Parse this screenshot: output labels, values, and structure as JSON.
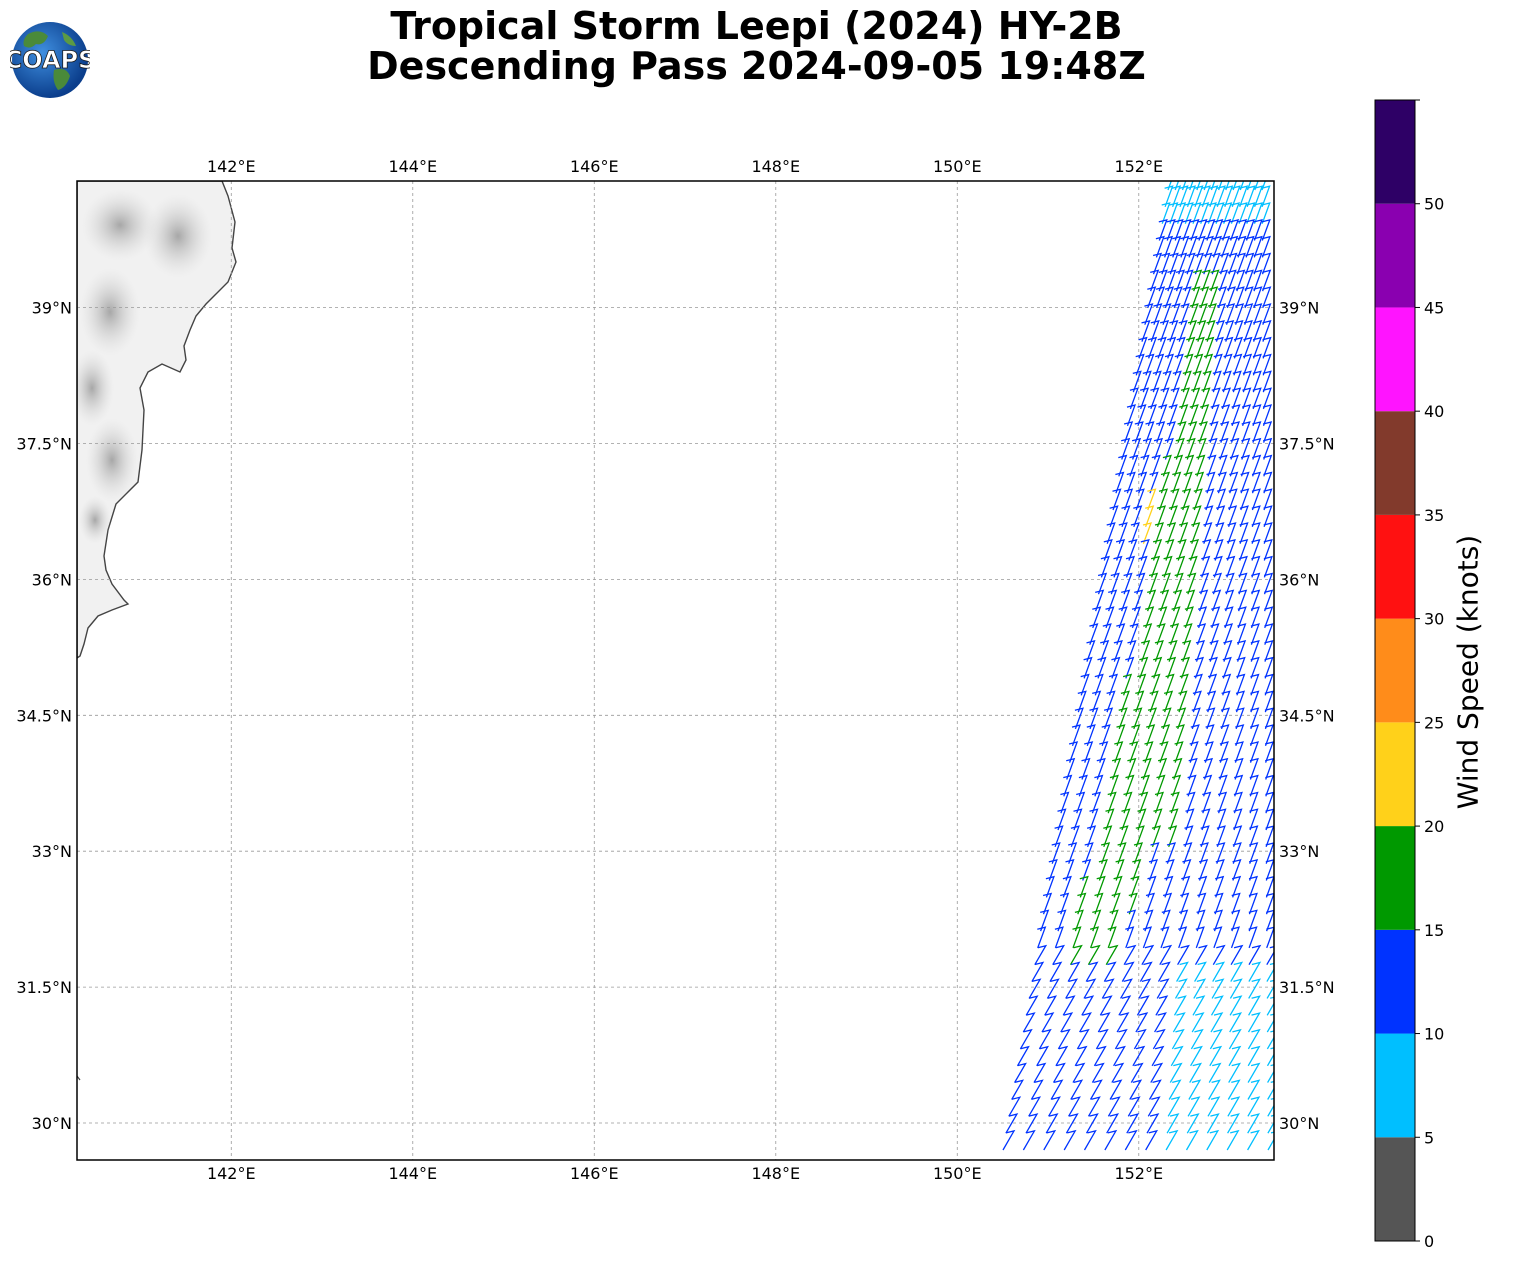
{
  "title": {
    "line1": "Tropical Storm Leepi (2024) HY-2B",
    "line2": "Descending Pass 2024-09-05 19:48Z"
  },
  "logo": {
    "text": "COAPS",
    "icon": "globe-logo-icon"
  },
  "map": {
    "lon_range": [
      140.3,
      153.5
    ],
    "lat_range": [
      29.6,
      40.4
    ],
    "lon_ticks": [
      "142°E",
      "144°E",
      "146°E",
      "148°E",
      "150°E",
      "152°E"
    ],
    "lon_tick_values": [
      142,
      144,
      146,
      148,
      150,
      152
    ],
    "lat_ticks": [
      "30°N",
      "31.5°N",
      "33°N",
      "34.5°N",
      "36°N",
      "37.5°N",
      "39°N"
    ],
    "lat_tick_values": [
      30,
      31.5,
      33,
      34.5,
      36,
      37.5,
      39
    ],
    "grid": true,
    "land": "Japan east coast (Honshu), grayscale terrain"
  },
  "colorbar": {
    "label": "Wind Speed (knots)",
    "ticks": [
      "0",
      "5",
      "10",
      "15",
      "20",
      "25",
      "30",
      "35",
      "40",
      "45",
      "50"
    ],
    "bins": [
      {
        "min": 0,
        "max": 5,
        "color": "#555555"
      },
      {
        "min": 5,
        "max": 10,
        "color": "#00bfff"
      },
      {
        "min": 10,
        "max": 15,
        "color": "#0033ff"
      },
      {
        "min": 15,
        "max": 20,
        "color": "#009900"
      },
      {
        "min": 20,
        "max": 25,
        "color": "#ffd11a"
      },
      {
        "min": 25,
        "max": 30,
        "color": "#ff8c1a"
      },
      {
        "min": 30,
        "max": 35,
        "color": "#ff1111"
      },
      {
        "min": 35,
        "max": 40,
        "color": "#823a2c"
      },
      {
        "min": 40,
        "max": 45,
        "color": "#ff14ff"
      },
      {
        "min": 45,
        "max": 50,
        "color": "#8a00b0"
      },
      {
        "min": 50,
        "max": 55,
        "color": "#2e0066"
      }
    ]
  }
}
